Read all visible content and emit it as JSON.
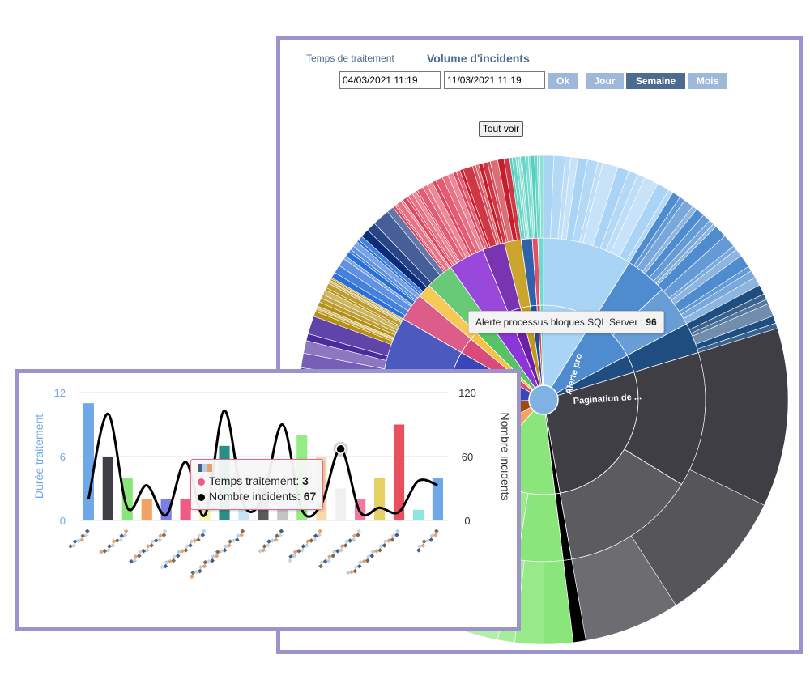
{
  "sunburst_panel": {
    "tabs": {
      "inactive": "Temps de traitement",
      "active": "Volume d'incidents"
    },
    "date_from": "04/03/2021 11:19",
    "date_to": "11/03/2021 11:19",
    "buttons": {
      "ok": "Ok",
      "day": "Jour",
      "week": "Semaine",
      "month": "Mois",
      "active": "Semaine"
    },
    "show_all": "Tout voir",
    "tooltip": {
      "label": "Alerte processus bloques SQL Server",
      "value": "96"
    },
    "segment_labels": {
      "alert": "Alerte pro",
      "pagination": "Pagination de ..."
    },
    "colors": {
      "frame": "#9b93cb",
      "pagination": "#3f3e44",
      "alert": "#a9d4f5"
    }
  },
  "chart_data": [
    {
      "type": "sunburst",
      "highlighted_segment": {
        "label": "Alerte processus bloques SQL Server",
        "value": 96
      },
      "visible_labels": [
        "Alerte pro",
        "Pagination de ..."
      ]
    },
    {
      "type": "bar+line",
      "series": [
        {
          "name": "Temps traitement",
          "type": "bar",
          "axis": "left",
          "values": [
            11,
            6,
            4,
            2,
            2,
            2,
            1,
            7,
            1,
            3,
            4,
            8,
            6,
            3,
            2,
            4,
            9,
            1,
            4
          ]
        },
        {
          "name": "Nombre incidents",
          "type": "line",
          "axis": "right",
          "values": [
            20,
            100,
            12,
            33,
            5,
            55,
            5,
            103,
            15,
            22,
            90,
            10,
            15,
            67,
            8,
            12,
            8,
            37,
            33
          ]
        }
      ],
      "left_axis": {
        "label": "Durée traitement",
        "ticks": [
          "12",
          "6",
          "0"
        ],
        "range": [
          0,
          12
        ]
      },
      "right_axis": {
        "label": "Nombre incidents",
        "ticks": [
          "120",
          "60",
          "0"
        ],
        "range": [
          0,
          120
        ]
      },
      "bar_colors": [
        "#6fa8e8",
        "#3f3e44",
        "#8ae67a",
        "#f4a261",
        "#7b7ee8",
        "#ef5b84",
        "#f3f3a4",
        "#2a8f87",
        "#c8e3f5",
        "#5a5a5a",
        "#c4c4c4",
        "#94ec84",
        "#f8d8ad",
        "#f0f0f0",
        "#f277a1",
        "#e6d264",
        "#e9505e",
        "#8fe6e0",
        "#6fa8e8"
      ],
      "highlighted_index": 13,
      "tooltip": {
        "label_bar": "Temps traitement",
        "value_bar": "3",
        "label_line": "Nombre incidents",
        "value_line": "67"
      }
    }
  ]
}
